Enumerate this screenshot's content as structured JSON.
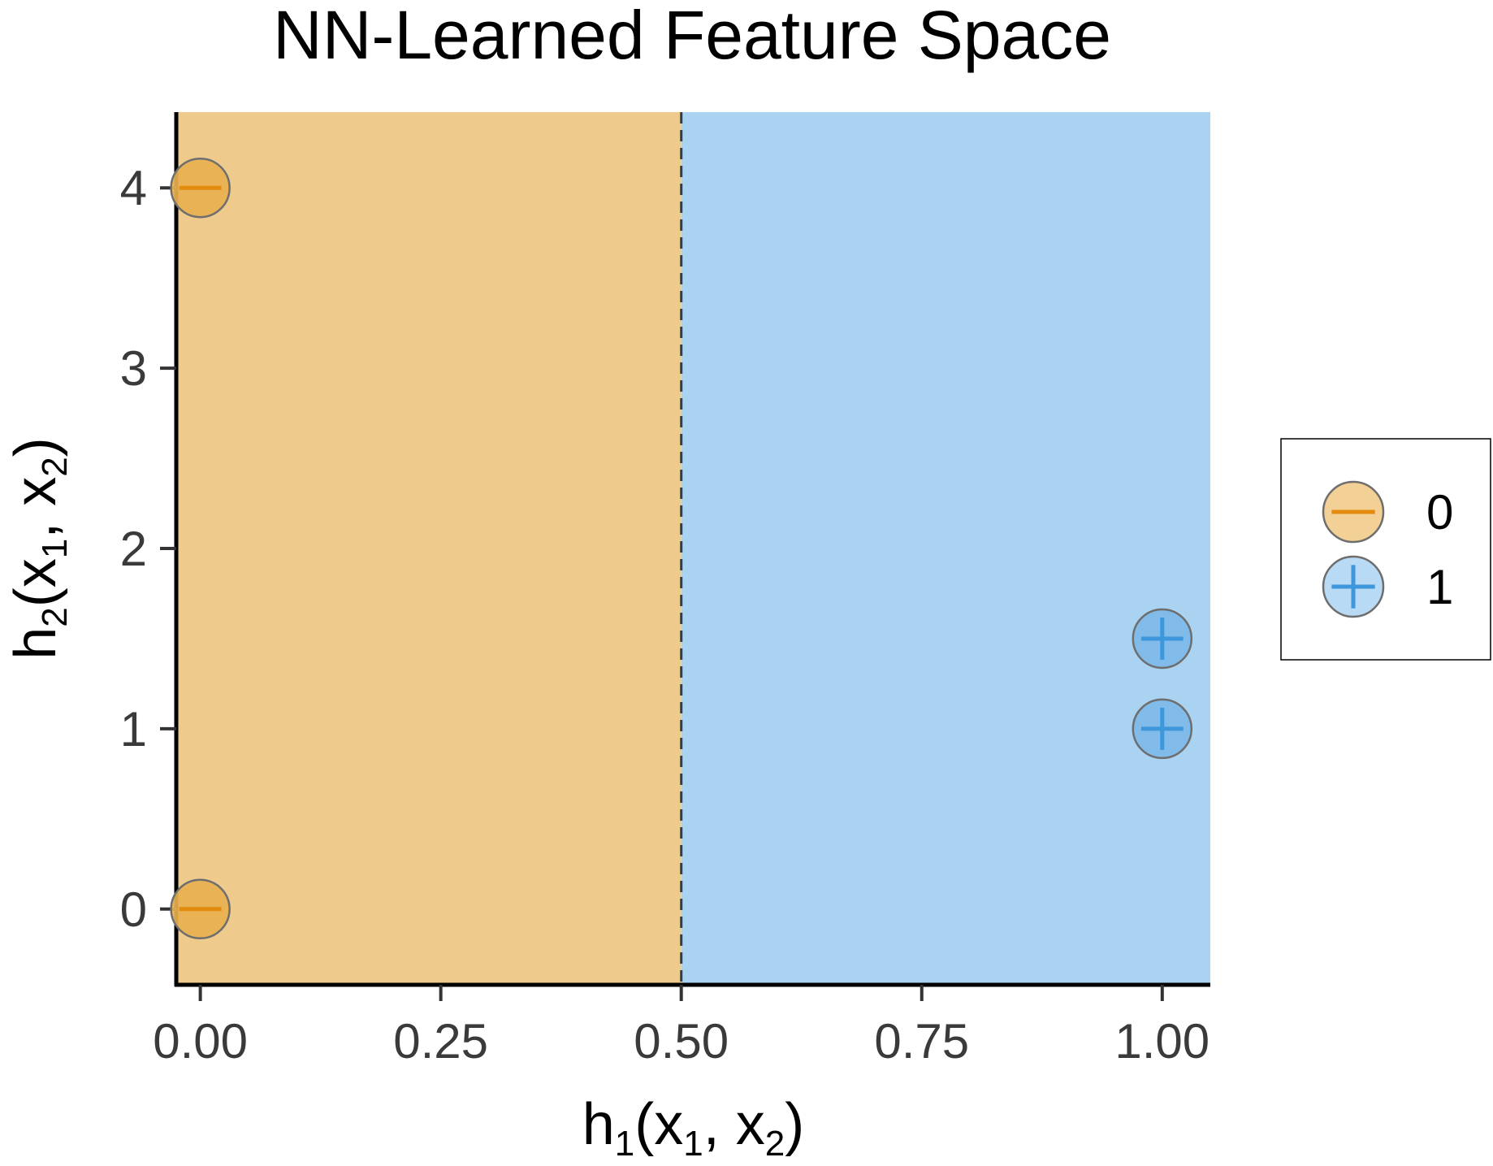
{
  "chart_data": {
    "type": "scatter",
    "title": "NN-Learned Feature Space",
    "xlabel": {
      "base": "h",
      "sub": "1",
      "args": [
        "x",
        "1",
        ", x",
        "2"
      ]
    },
    "ylabel": {
      "base": "h",
      "sub": "2",
      "args": [
        "x",
        "1",
        ", x",
        "2"
      ]
    },
    "xlim": [
      -0.025,
      1.05
    ],
    "ylim": [
      -0.42,
      4.42
    ],
    "x_ticks": [
      0,
      0.25,
      0.5,
      0.75,
      1.0
    ],
    "x_tick_labels": [
      "0.00",
      "0.25",
      "0.50",
      "0.75",
      "1.00"
    ],
    "y_ticks": [
      0,
      1,
      2,
      3,
      4
    ],
    "y_tick_labels": [
      "0",
      "1",
      "2",
      "3",
      "4"
    ],
    "decision_boundary": {
      "orientation": "vertical",
      "x": 0.5,
      "style": "dashed"
    },
    "regions": [
      {
        "class": "0",
        "from": -0.025,
        "to": 0.5,
        "color": "#eecb8d"
      },
      {
        "class": "1",
        "from": 0.5,
        "to": 1.05,
        "color": "#aad2f1"
      }
    ],
    "series": [
      {
        "name": "0",
        "marker": "minus",
        "fill": "#e8b04f",
        "stroke": "#e38a0f",
        "points": [
          {
            "x": 0,
            "y": 0
          },
          {
            "x": 0,
            "y": 4
          }
        ]
      },
      {
        "name": "1",
        "marker": "plus",
        "fill": "#7db8e8",
        "stroke": "#3d97da",
        "points": [
          {
            "x": 1,
            "y": 1
          },
          {
            "x": 1,
            "y": 1.5
          }
        ]
      }
    ],
    "legend": {
      "position": "right",
      "items": [
        {
          "label": "0",
          "marker": "minus",
          "fill": "#f2cc8c",
          "stroke": "#e38a0f"
        },
        {
          "label": "1",
          "marker": "plus",
          "fill": "#b3d7f3",
          "stroke": "#3d97da"
        }
      ]
    },
    "grid": false
  }
}
